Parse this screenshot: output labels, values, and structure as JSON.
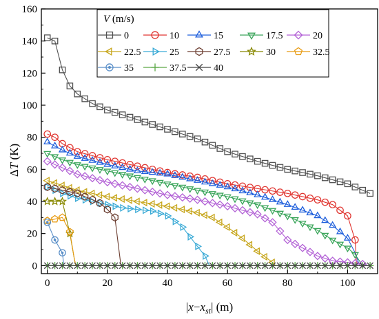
{
  "chart_data": {
    "type": "scatter",
    "xlabel": "|x−x_st| (m)",
    "ylabel": "ΔT (K)",
    "xlim": [
      -2,
      110
    ],
    "ylim": [
      -5,
      160
    ],
    "xticks": [
      0,
      20,
      40,
      60,
      80,
      100
    ],
    "yticks": [
      0,
      20,
      40,
      60,
      80,
      100,
      120,
      140,
      160
    ],
    "grid": false,
    "legend": {
      "title": "V (m/s)",
      "title_italic": "V",
      "title_rest": " (m/s)",
      "placement": "top-right"
    },
    "series": [
      {
        "name": "0",
        "marker": "square",
        "color": "#505050",
        "x0": 0,
        "dx": 2.5,
        "n": 44,
        "profile": [
          [
            0,
            142
          ],
          [
            2.5,
            140
          ],
          [
            5,
            122
          ],
          [
            7.5,
            112
          ],
          [
            10,
            107
          ],
          [
            15,
            101
          ],
          [
            20,
            97
          ],
          [
            30,
            91
          ],
          [
            40,
            85
          ],
          [
            50,
            79
          ],
          [
            60,
            71
          ],
          [
            70,
            65
          ],
          [
            80,
            60
          ],
          [
            90,
            56
          ],
          [
            100,
            51
          ],
          [
            107.5,
            45
          ]
        ]
      },
      {
        "name": "10",
        "marker": "circle",
        "color": "#e03530",
        "x0": 0,
        "dx": 2.5,
        "n": 42,
        "profile": [
          [
            0,
            82
          ],
          [
            2.5,
            80
          ],
          [
            5,
            76
          ],
          [
            10,
            71
          ],
          [
            20,
            66
          ],
          [
            30,
            62
          ],
          [
            40,
            58
          ],
          [
            50,
            55
          ],
          [
            60,
            51
          ],
          [
            70,
            48
          ],
          [
            80,
            45
          ],
          [
            90,
            41
          ],
          [
            95,
            38
          ],
          [
            100,
            31
          ],
          [
            102.5,
            16
          ],
          [
            103,
            0
          ]
        ]
      },
      {
        "name": "15",
        "marker": "triangle-up",
        "color": "#1f5fdc",
        "x0": 0,
        "dx": 2.5,
        "n": 41,
        "profile": [
          [
            0,
            77
          ],
          [
            5,
            72
          ],
          [
            10,
            68
          ],
          [
            20,
            63
          ],
          [
            30,
            59
          ],
          [
            40,
            57
          ],
          [
            50,
            53
          ],
          [
            60,
            49
          ],
          [
            70,
            44
          ],
          [
            80,
            38
          ],
          [
            90,
            31
          ],
          [
            95,
            25
          ],
          [
            100,
            17
          ],
          [
            102.5,
            8
          ],
          [
            104,
            0
          ]
        ]
      },
      {
        "name": "17.5",
        "marker": "triangle-down",
        "color": "#3aa55a",
        "x0": 0,
        "dx": 2.5,
        "n": 42,
        "profile": [
          [
            0,
            70
          ],
          [
            5,
            66
          ],
          [
            10,
            63
          ],
          [
            20,
            59
          ],
          [
            30,
            55
          ],
          [
            40,
            51
          ],
          [
            50,
            47
          ],
          [
            60,
            43
          ],
          [
            70,
            38
          ],
          [
            80,
            31
          ],
          [
            90,
            22
          ],
          [
            95,
            16
          ],
          [
            100,
            11
          ],
          [
            102.5,
            7
          ],
          [
            105,
            0
          ]
        ]
      },
      {
        "name": "20",
        "marker": "diamond",
        "color": "#b362d6",
        "x0": 0,
        "dx": 2.5,
        "n": 43,
        "profile": [
          [
            0,
            65
          ],
          [
            5,
            61
          ],
          [
            10,
            57
          ],
          [
            20,
            52
          ],
          [
            30,
            48
          ],
          [
            40,
            44
          ],
          [
            50,
            41
          ],
          [
            60,
            37
          ],
          [
            70,
            32
          ],
          [
            75,
            27
          ],
          [
            80,
            16
          ],
          [
            85,
            11
          ],
          [
            90,
            6
          ],
          [
            95,
            3
          ],
          [
            100,
            2
          ],
          [
            105,
            1
          ],
          [
            107,
            0
          ]
        ]
      },
      {
        "name": "22.5",
        "marker": "triangle-left",
        "color": "#c7a61c",
        "x0": 0,
        "dx": 2.5,
        "n": 31,
        "profile": [
          [
            0,
            53
          ],
          [
            5,
            50
          ],
          [
            10,
            47
          ],
          [
            20,
            43
          ],
          [
            30,
            40
          ],
          [
            40,
            37
          ],
          [
            50,
            33
          ],
          [
            55,
            30
          ],
          [
            60,
            24
          ],
          [
            65,
            17
          ],
          [
            70,
            9
          ],
          [
            75,
            2
          ],
          [
            76,
            0
          ]
        ]
      },
      {
        "name": "25",
        "marker": "triangle-right",
        "color": "#3aaad6",
        "x0": 0,
        "dx": 2.5,
        "n": 22,
        "profile": [
          [
            0,
            49
          ],
          [
            5,
            45
          ],
          [
            10,
            42
          ],
          [
            15,
            40
          ],
          [
            20,
            38
          ],
          [
            25,
            36
          ],
          [
            30,
            35
          ],
          [
            35,
            34
          ],
          [
            40,
            31
          ],
          [
            45,
            24
          ],
          [
            50,
            12
          ],
          [
            52.5,
            6
          ],
          [
            54,
            0
          ]
        ]
      },
      {
        "name": "27.5",
        "marker": "hexagon",
        "color": "#6a3b2e",
        "x0": 0,
        "dx": 2.5,
        "n": 10,
        "profile": [
          [
            0,
            49
          ],
          [
            5,
            47
          ],
          [
            10,
            45
          ],
          [
            15,
            41
          ],
          [
            17.5,
            39
          ],
          [
            20,
            35
          ],
          [
            22.5,
            30
          ],
          [
            24.5,
            0
          ]
        ]
      },
      {
        "name": "30",
        "marker": "star",
        "color": "#888800",
        "x0": 0,
        "dx": 2.5,
        "n": 4,
        "profile": [
          [
            0,
            40
          ],
          [
            2.5,
            40
          ],
          [
            5,
            40
          ],
          [
            7.5,
            20
          ],
          [
            9,
            4
          ],
          [
            9.5,
            0
          ]
        ]
      },
      {
        "name": "32.5",
        "marker": "pentagon",
        "color": "#e89b12",
        "x0": 0,
        "dx": 2.5,
        "n": 4,
        "profile": [
          [
            0,
            28
          ],
          [
            2.5,
            29
          ],
          [
            5,
            30
          ],
          [
            7.5,
            21
          ],
          [
            9,
            4
          ],
          [
            9.5,
            0
          ]
        ]
      },
      {
        "name": "35",
        "marker": "target",
        "color": "#5a8fc8",
        "x0": 0,
        "dx": 2.5,
        "n": 3,
        "profile": [
          [
            0,
            27
          ],
          [
            2.5,
            16
          ],
          [
            5,
            8
          ],
          [
            5.5,
            0
          ]
        ]
      },
      {
        "name": "37.5",
        "marker": "plus",
        "color": "#5aa845",
        "x0": 0,
        "dx": 2.5,
        "n": 44,
        "profile": [
          [
            0,
            0
          ],
          [
            107.5,
            0
          ]
        ]
      },
      {
        "name": "40",
        "marker": "cross",
        "color": "#454545",
        "x0": 0,
        "dx": 2.5,
        "n": 44,
        "profile": [
          [
            0,
            0
          ],
          [
            107.5,
            0
          ]
        ]
      }
    ]
  }
}
